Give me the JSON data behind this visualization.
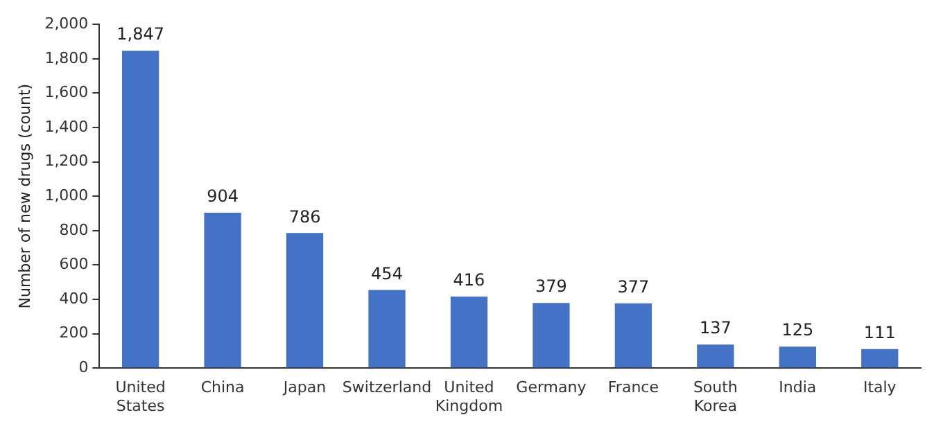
{
  "chart_data": {
    "type": "bar",
    "ylabel": "Number of new drugs (count)",
    "categories": [
      "United States",
      "China",
      "Japan",
      "Switzerland",
      "United Kingdom",
      "Germany",
      "France",
      "South Korea",
      "India",
      "Italy"
    ],
    "values": [
      1847,
      904,
      786,
      454,
      416,
      379,
      377,
      137,
      125,
      111
    ],
    "value_labels": [
      "1,847",
      "904",
      "786",
      "454",
      "416",
      "379",
      "377",
      "137",
      "125",
      "111"
    ],
    "color": "#4472c4",
    "ylim": [
      0,
      2000
    ],
    "yticks": [
      {
        "value": 0,
        "label": "0"
      },
      {
        "value": 200,
        "label": "200"
      },
      {
        "value": 400,
        "label": "400"
      },
      {
        "value": 600,
        "label": "600"
      },
      {
        "value": 800,
        "label": "800"
      },
      {
        "value": 1000,
        "label": "1,000"
      },
      {
        "value": 1200,
        "label": "1,200"
      },
      {
        "value": 1400,
        "label": "1,400"
      },
      {
        "value": 1600,
        "label": "1,600"
      },
      {
        "value": 1800,
        "label": "1,800"
      },
      {
        "value": 2000,
        "label": "2,000"
      }
    ],
    "grid": false,
    "legend": false
  }
}
